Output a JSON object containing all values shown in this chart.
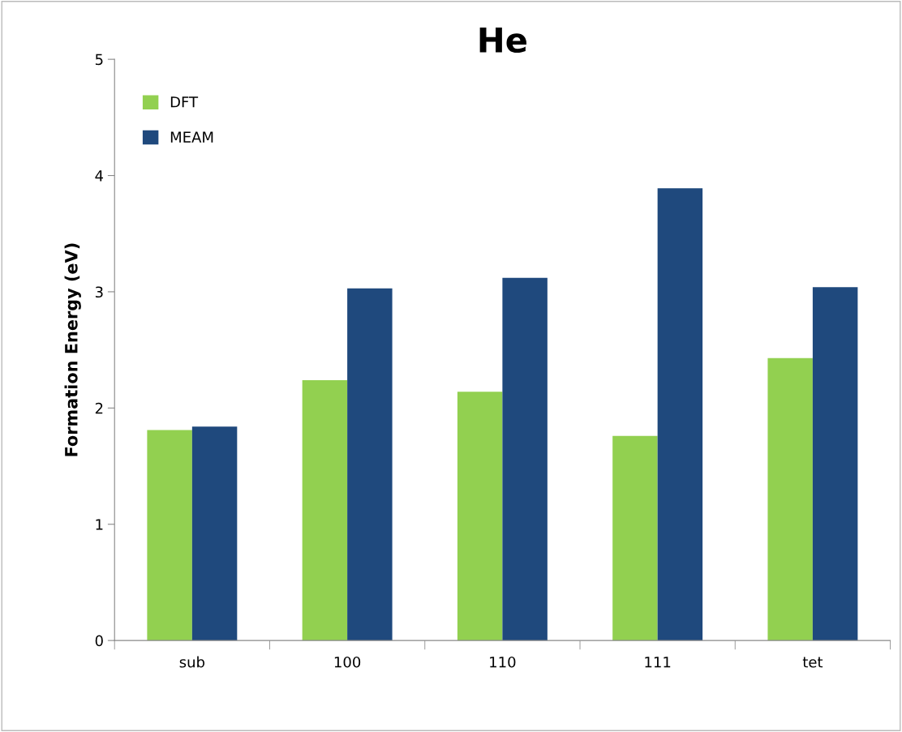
{
  "chart_data": {
    "type": "bar",
    "title": "He",
    "ylabel": "Formation Energy (eV)",
    "categories": [
      "sub",
      "100",
      "110",
      "111",
      "tet"
    ],
    "series": [
      {
        "name": "DFT",
        "color": "#92d050",
        "values": [
          1.81,
          2.24,
          2.14,
          1.76,
          2.43
        ]
      },
      {
        "name": "MEAM",
        "color": "#1f497d",
        "values": [
          1.84,
          3.03,
          3.12,
          3.89,
          3.04
        ]
      }
    ],
    "ylim": [
      0,
      5
    ],
    "yticks": [
      0,
      1,
      2,
      3,
      4,
      5
    ],
    "grid": false,
    "legend": "top left"
  }
}
